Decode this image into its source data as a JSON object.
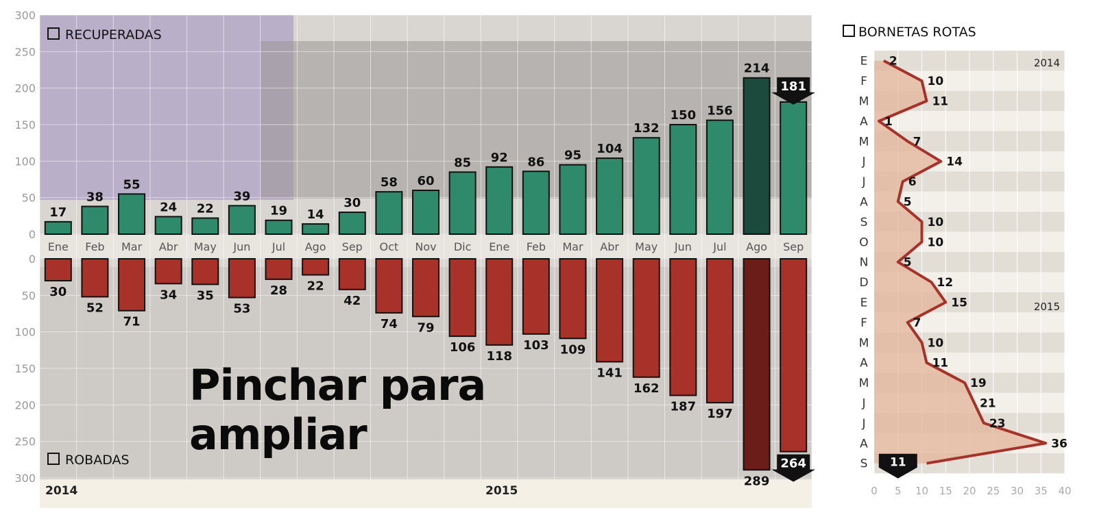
{
  "main_chart": {
    "legend_recovered": "RECUPERADAS",
    "legend_stolen": "ROBADAS",
    "year_labels": [
      "2014",
      "2015"
    ],
    "overlay_line1": "Pinchar para",
    "overlay_line2": "ampliar",
    "colors": {
      "recovered": "#2f8a6c",
      "recovered_highlight": "#1c4a3c",
      "stolen": "#a8322a",
      "stolen_highlight": "#6a1d19"
    }
  },
  "side_chart": {
    "title": "BORNETAS ROTAS",
    "year_labels": [
      "2014",
      "2015"
    ],
    "color": "#a8322a"
  },
  "chart_data": [
    {
      "type": "bar",
      "categories": [
        "Ene",
        "Feb",
        "Mar",
        "Abr",
        "May",
        "Jun",
        "Jul",
        "Ago",
        "Sep",
        "Oct",
        "Nov",
        "Dic",
        "Ene",
        "Feb",
        "Mar",
        "Abr",
        "May",
        "Jun",
        "Jul",
        "Ago",
        "Sep"
      ],
      "series": [
        {
          "name": "RECUPERADAS",
          "values": [
            17,
            38,
            55,
            24,
            22,
            39,
            19,
            14,
            30,
            58,
            60,
            85,
            92,
            86,
            95,
            104,
            132,
            150,
            156,
            214,
            181
          ]
        },
        {
          "name": "ROBADAS",
          "values": [
            30,
            52,
            71,
            34,
            35,
            53,
            28,
            22,
            42,
            74,
            79,
            106,
            118,
            103,
            109,
            141,
            162,
            187,
            197,
            289,
            264
          ]
        }
      ],
      "yticks_top": [
        "300",
        "250",
        "200",
        "150",
        "100",
        "50",
        "0"
      ],
      "yticks_bottom": [
        "0",
        "50",
        "100",
        "150",
        "200",
        "250",
        "300"
      ],
      "ylim": [
        0,
        300
      ],
      "grid": true
    },
    {
      "type": "line",
      "title": "BORNETAS ROTAS",
      "categories": [
        "E",
        "F",
        "M",
        "A",
        "M",
        "J",
        "J",
        "A",
        "S",
        "O",
        "N",
        "D",
        "E",
        "F",
        "M",
        "A",
        "M",
        "J",
        "J",
        "A",
        "S"
      ],
      "values": [
        2,
        10,
        11,
        1,
        7,
        14,
        6,
        5,
        10,
        10,
        5,
        12,
        15,
        7,
        10,
        11,
        19,
        21,
        23,
        36,
        11
      ],
      "xticks": [
        "0",
        "5",
        "10",
        "15",
        "20",
        "25",
        "30",
        "35",
        "40"
      ],
      "xlim": [
        0,
        40
      ],
      "grid": true
    }
  ]
}
